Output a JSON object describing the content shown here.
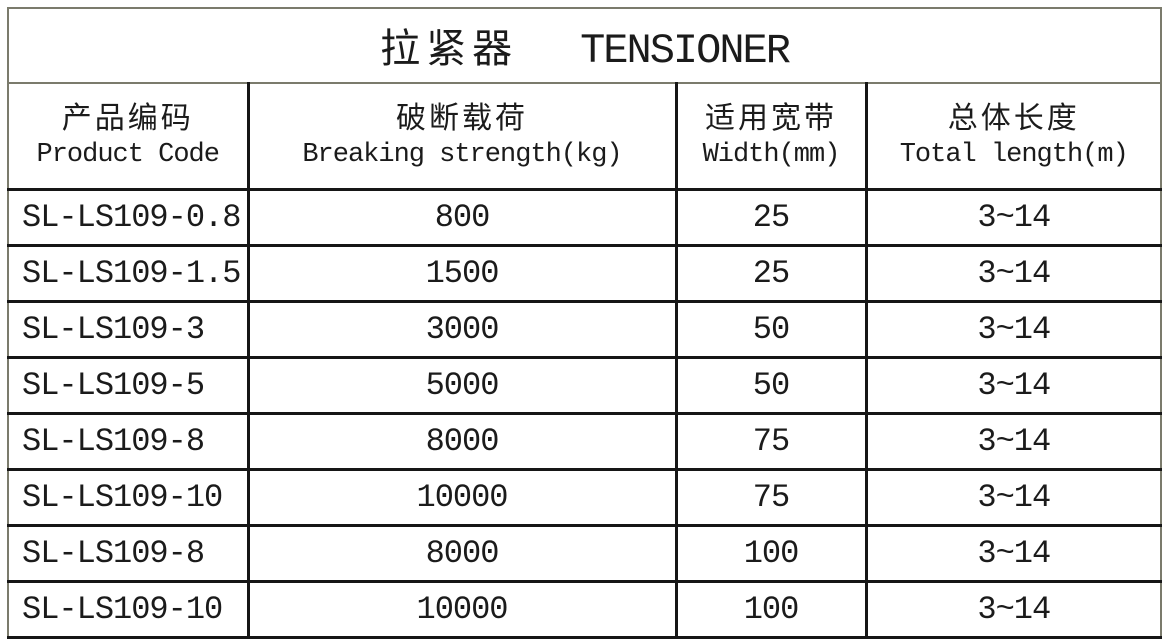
{
  "title": {
    "cn": "拉紧器",
    "en": "TENSIONER"
  },
  "columns": [
    {
      "cn": "产品编码",
      "en": "Product Code"
    },
    {
      "cn": "破断载荷",
      "en": "Breaking strength(kg)"
    },
    {
      "cn": "适用宽带",
      "en": "Width(mm)"
    },
    {
      "cn": "总体长度",
      "en": "Total length(m)"
    }
  ],
  "chart_data": {
    "type": "table",
    "title": "拉紧器 TENSIONER",
    "column_headers": [
      "产品编码 Product Code",
      "破断载荷 Breaking strength(kg)",
      "适用宽带 Width(mm)",
      "总体长度 Total length(m)"
    ],
    "rows": [
      [
        "SL-LS109-0.8",
        "800",
        "25",
        "3~14"
      ],
      [
        "SL-LS109-1.5",
        "1500",
        "25",
        "3~14"
      ],
      [
        "SL-LS109-3",
        "3000",
        "50",
        "3~14"
      ],
      [
        "SL-LS109-5",
        "5000",
        "50",
        "3~14"
      ],
      [
        "SL-LS109-8",
        "8000",
        "75",
        "3~14"
      ],
      [
        "SL-LS109-10",
        "10000",
        "75",
        "3~14"
      ],
      [
        "SL-LS109-8",
        "8000",
        "100",
        "3~14"
      ],
      [
        "SL-LS109-10",
        "10000",
        "100",
        "3~14"
      ]
    ]
  },
  "colors": {
    "outer_border": "#7b7b6c",
    "inner_border": "#161616",
    "text": "#1b1b1b",
    "background": "#ffffff"
  }
}
